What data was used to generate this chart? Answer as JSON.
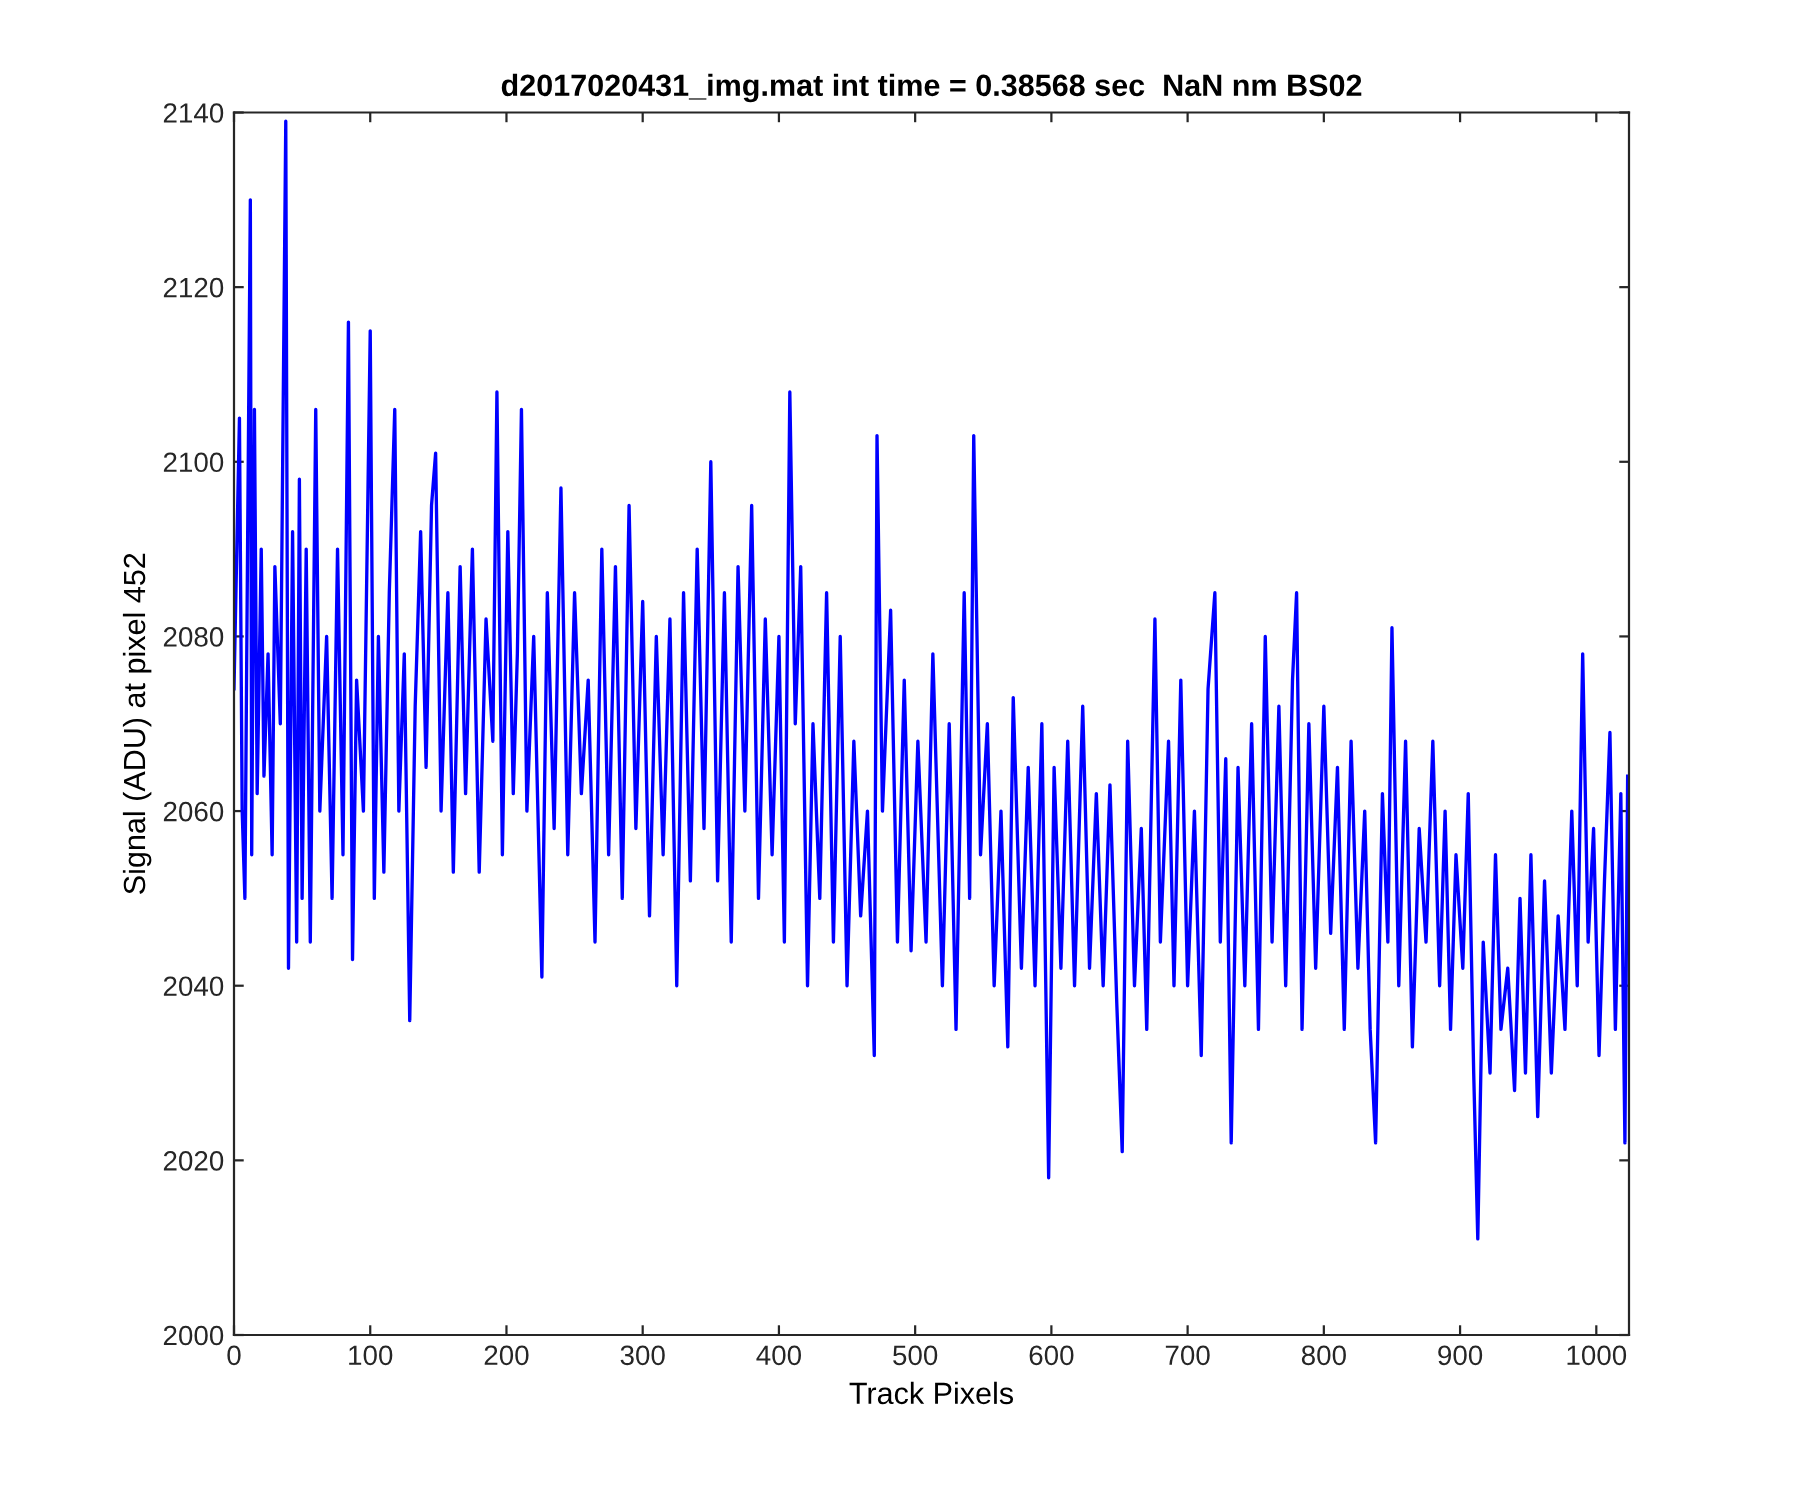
{
  "chart_data": {
    "type": "line",
    "title": "d2017020431_img.mat int time = 0.38568 sec  NaN nm BS02",
    "xlabel": "Track Pixels",
    "ylabel": "Signal (ADU) at pixel 452",
    "xlim": [
      0,
      1024
    ],
    "ylim": [
      2000,
      2140
    ],
    "xticks": [
      0,
      100,
      200,
      300,
      400,
      500,
      600,
      700,
      800,
      900,
      1000
    ],
    "yticks": [
      2000,
      2020,
      2040,
      2060,
      2080,
      2100,
      2120,
      2140
    ],
    "grid": false,
    "marker": "none",
    "line_style": "solid",
    "series": [
      {
        "color": "#0000ff",
        "x": [
          0,
          4,
          6,
          8,
          10,
          12,
          13,
          15,
          17,
          20,
          22,
          25,
          28,
          30,
          34,
          38,
          40,
          43,
          46,
          48,
          50,
          53,
          56,
          60,
          63,
          68,
          72,
          76,
          80,
          84,
          87,
          90,
          95,
          100,
          103,
          106,
          110,
          114,
          118,
          121,
          125,
          129,
          133,
          137,
          141,
          145,
          148,
          152,
          157,
          161,
          166,
          170,
          175,
          180,
          185,
          190,
          193,
          197,
          201,
          205,
          208,
          211,
          215,
          220,
          226,
          230,
          235,
          240,
          245,
          250,
          255,
          260,
          265,
          270,
          275,
          280,
          285,
          290,
          295,
          300,
          305,
          310,
          315,
          320,
          325,
          330,
          335,
          340,
          345,
          350,
          355,
          360,
          365,
          370,
          375,
          380,
          385,
          390,
          395,
          400,
          404,
          408,
          412,
          416,
          421,
          425,
          430,
          435,
          440,
          445,
          450,
          455,
          460,
          465,
          470,
          472,
          476,
          482,
          487,
          492,
          497,
          502,
          508,
          513,
          520,
          525,
          530,
          536,
          540,
          543,
          548,
          553,
          558,
          563,
          568,
          572,
          578,
          583,
          588,
          593,
          598,
          602,
          607,
          612,
          617,
          623,
          628,
          633,
          638,
          643,
          648,
          652,
          656,
          661,
          666,
          670,
          676,
          680,
          686,
          690,
          695,
          700,
          705,
          710,
          715,
          720,
          724,
          728,
          732,
          737,
          742,
          747,
          752,
          757,
          762,
          767,
          772,
          777,
          780,
          784,
          789,
          794,
          800,
          805,
          810,
          815,
          820,
          825,
          830,
          834,
          838,
          843,
          847,
          850,
          855,
          860,
          865,
          870,
          875,
          880,
          885,
          889,
          893,
          897,
          902,
          906,
          910,
          913,
          917,
          922,
          926,
          930,
          935,
          940,
          944,
          948,
          952,
          957,
          962,
          967,
          972,
          977,
          982,
          986,
          990,
          994,
          998,
          1002,
          1006,
          1010,
          1014,
          1018,
          1021,
          1023
        ],
        "values": [
          2074,
          2105,
          2060,
          2050,
          2091,
          2130,
          2055,
          2106,
          2062,
          2090,
          2064,
          2078,
          2055,
          2088,
          2070,
          2139,
          2042,
          2092,
          2045,
          2098,
          2050,
          2090,
          2045,
          2106,
          2060,
          2080,
          2050,
          2090,
          2055,
          2116,
          2043,
          2075,
          2060,
          2115,
          2050,
          2080,
          2053,
          2085,
          2106,
          2060,
          2078,
          2036,
          2072,
          2092,
          2065,
          2095,
          2101,
          2060,
          2085,
          2053,
          2088,
          2062,
          2090,
          2053,
          2082,
          2068,
          2108,
          2055,
          2092,
          2062,
          2078,
          2106,
          2060,
          2080,
          2041,
          2085,
          2058,
          2097,
          2055,
          2085,
          2062,
          2075,
          2045,
          2090,
          2055,
          2088,
          2050,
          2095,
          2058,
          2084,
          2048,
          2080,
          2055,
          2082,
          2040,
          2085,
          2052,
          2090,
          2058,
          2100,
          2052,
          2085,
          2045,
          2088,
          2060,
          2095,
          2050,
          2082,
          2055,
          2080,
          2045,
          2108,
          2070,
          2088,
          2040,
          2070,
          2050,
          2085,
          2045,
          2080,
          2040,
          2068,
          2048,
          2060,
          2032,
          2103,
          2060,
          2083,
          2045,
          2075,
          2044,
          2068,
          2045,
          2078,
          2040,
          2070,
          2035,
          2085,
          2050,
          2103,
          2055,
          2070,
          2040,
          2060,
          2033,
          2073,
          2042,
          2065,
          2040,
          2070,
          2018,
          2065,
          2042,
          2068,
          2040,
          2072,
          2042,
          2062,
          2040,
          2063,
          2038,
          2021,
          2068,
          2040,
          2058,
          2035,
          2082,
          2045,
          2068,
          2040,
          2075,
          2040,
          2060,
          2032,
          2074,
          2085,
          2045,
          2066,
          2022,
          2065,
          2040,
          2070,
          2035,
          2080,
          2045,
          2072,
          2040,
          2075,
          2085,
          2035,
          2070,
          2042,
          2072,
          2046,
          2065,
          2035,
          2068,
          2042,
          2060,
          2035,
          2022,
          2062,
          2045,
          2081,
          2040,
          2068,
          2033,
          2058,
          2045,
          2068,
          2040,
          2060,
          2035,
          2055,
          2042,
          2062,
          2030,
          2011,
          2045,
          2030,
          2055,
          2035,
          2042,
          2028,
          2050,
          2030,
          2055,
          2025,
          2052,
          2030,
          2048,
          2035,
          2060,
          2040,
          2078,
          2045,
          2058,
          2032,
          2052,
          2069,
          2035,
          2062,
          2022,
          2064
        ]
      }
    ]
  }
}
